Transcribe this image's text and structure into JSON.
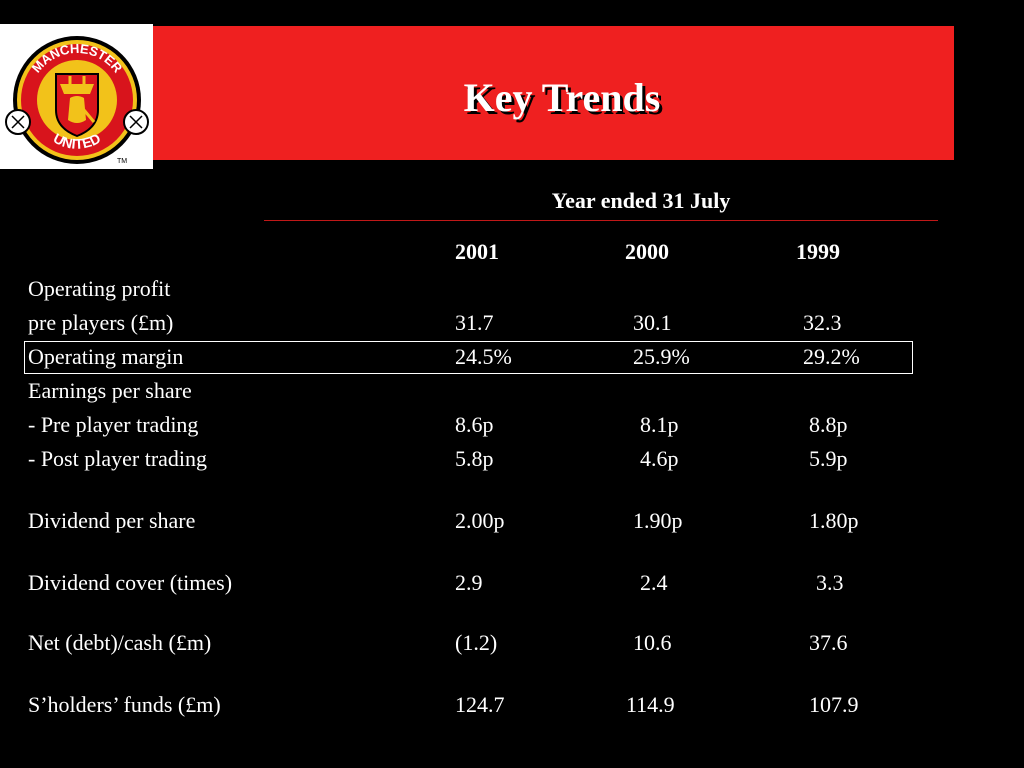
{
  "logo": {
    "top_text": "MANCHESTER",
    "bottom_text": "UNITED",
    "tm": "TM"
  },
  "title": "Key Trends",
  "period_header": "Year ended 31 July",
  "years": [
    "2001",
    "2000",
    "1999"
  ],
  "rows": {
    "op_profit_label_1": "Operating profit",
    "op_profit_label_2": "pre players (£m)",
    "op_profit": [
      "31.7",
      "30.1",
      "32.3"
    ],
    "op_margin_label": "Operating margin",
    "op_margin": [
      "24.5%",
      "25.9%",
      "29.2%"
    ],
    "eps_label": "Earnings per share",
    "eps_pre_label": "-  Pre player trading",
    "eps_pre": [
      "8.6p",
      "8.1p",
      "8.8p"
    ],
    "eps_post_label": "-  Post player trading",
    "eps_post": [
      "5.8p",
      "4.6p",
      "5.9p"
    ],
    "dps_label": "Dividend per share",
    "dps": [
      "2.00p",
      "1.90p",
      "1.80p"
    ],
    "cover_label": "Dividend cover (times)",
    "cover": [
      "2.9",
      "2.4",
      "3.3"
    ],
    "net_label": "Net (debt)/cash (£m)",
    "net": [
      "(1.2)",
      "10.6",
      "37.6"
    ],
    "funds_label": "S’holders’ funds (£m)",
    "funds": [
      "124.7",
      "114.9",
      "107.9"
    ]
  },
  "colors": {
    "background": "#000000",
    "title_band": "#ef2020",
    "rule": "#c01818",
    "text": "#ffffff"
  }
}
